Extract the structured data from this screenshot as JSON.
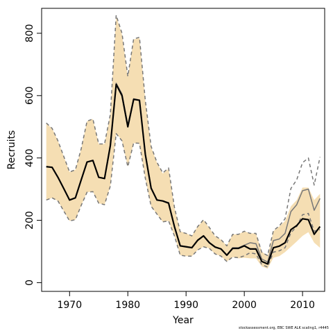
{
  "chart_data": {
    "type": "line",
    "xlabel": "Year",
    "ylabel": "Recruits",
    "xlim": [
      1965.2,
      2013.8
    ],
    "ylim": [
      -28,
      880
    ],
    "x_ticks": [
      1970,
      1980,
      1990,
      2000,
      2010
    ],
    "y_ticks": [
      0,
      200,
      400,
      600,
      800
    ],
    "grid": false,
    "x": [
      1966,
      1967,
      1968,
      1969,
      1970,
      1971,
      1972,
      1973,
      1974,
      1975,
      1976,
      1977,
      1978,
      1979,
      1980,
      1981,
      1982,
      1983,
      1984,
      1985,
      1986,
      1987,
      1988,
      1989,
      1990,
      1991,
      1992,
      1993,
      1994,
      1995,
      1996,
      1997,
      1998,
      1999,
      2000,
      2001,
      2002,
      2003,
      2004,
      2005,
      2006,
      2007,
      2008,
      2009,
      2010,
      2011,
      2012,
      2013
    ],
    "band": {
      "color": "#f5deb3",
      "upper": [
        510,
        495,
        455,
        405,
        355,
        362,
        430,
        518,
        525,
        445,
        445,
        540,
        855,
        795,
        660,
        780,
        785,
        585,
        435,
        385,
        350,
        365,
        240,
        165,
        158,
        150,
        180,
        200,
        175,
        148,
        138,
        118,
        155,
        155,
        165,
        158,
        158,
        100,
        85,
        165,
        180,
        198,
        245,
        265,
        305,
        305,
        265,
        285
      ],
      "lower": [
        265,
        272,
        262,
        230,
        198,
        202,
        248,
        290,
        292,
        255,
        250,
        310,
        480,
        455,
        372,
        448,
        445,
        335,
        245,
        220,
        195,
        198,
        150,
        88,
        85,
        85,
        105,
        115,
        110,
        92,
        85,
        68,
        82,
        78,
        80,
        78,
        78,
        52,
        45,
        80,
        85,
        98,
        115,
        132,
        150,
        162,
        128,
        112
      ]
    },
    "series": [
      {
        "color": "#000000",
        "style": "solid",
        "width": 2.2,
        "values": [
          372,
          370,
          338,
          302,
          265,
          272,
          330,
          387,
          392,
          338,
          334,
          440,
          636,
          600,
          500,
          588,
          585,
          412,
          303,
          265,
          262,
          255,
          180,
          118,
          115,
          112,
          136,
          150,
          128,
          114,
          108,
          88,
          110,
          110,
          118,
          108,
          108,
          68,
          60,
          112,
          117,
          128,
          170,
          183,
          205,
          202,
          155,
          180
        ]
      },
      {
        "color": "#777777",
        "style": "solid",
        "width": 1.5,
        "values": [
          372,
          370,
          338,
          302,
          265,
          272,
          330,
          387,
          392,
          338,
          334,
          440,
          640,
          605,
          505,
          590,
          586,
          414,
          304,
          266,
          262,
          257,
          181,
          119,
          116,
          113,
          137,
          151,
          129,
          115,
          109,
          89,
          112,
          112,
          120,
          128,
          125,
          76,
          66,
          135,
          140,
          158,
          228,
          250,
          295,
          300,
          232,
          270
        ]
      },
      {
        "color": "#777777",
        "style": "dashed",
        "width": 1.5,
        "values": [
          512,
          495,
          455,
          405,
          355,
          362,
          430,
          518,
          525,
          445,
          445,
          540,
          858,
          800,
          662,
          782,
          787,
          585,
          437,
          386,
          352,
          368,
          242,
          163,
          158,
          150,
          180,
          202,
          177,
          150,
          138,
          118,
          155,
          155,
          165,
          158,
          158,
          97,
          87,
          167,
          182,
          205,
          302,
          330,
          385,
          400,
          313,
          403
        ]
      },
      {
        "color": "#777777",
        "style": "dashed",
        "width": 1.5,
        "values": [
          265,
          272,
          262,
          230,
          198,
          202,
          248,
          290,
          292,
          255,
          250,
          310,
          478,
          455,
          372,
          448,
          447,
          335,
          245,
          220,
          195,
          198,
          150,
          88,
          85,
          85,
          105,
          115,
          110,
          92,
          85,
          68,
          82,
          80,
          86,
          96,
          92,
          58,
          50,
          98,
          102,
          112,
          160,
          180,
          218,
          222,
          165,
          170
        ]
      }
    ]
  },
  "footnote": "stockassessment.org, EBC SWE ALK scaling1, r4445"
}
